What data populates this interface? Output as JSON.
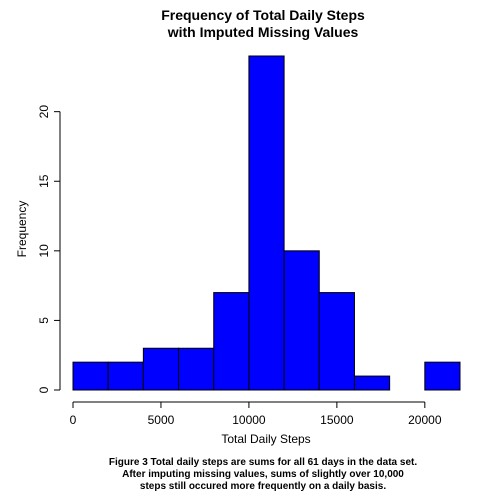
{
  "chart_data": {
    "type": "histogram",
    "title_lines": [
      "Frequency of Total Daily Steps",
      "with Imputed Missing Values"
    ],
    "xlabel": "Total Daily Steps",
    "ylabel": "Frequency",
    "bin_edges": [
      0,
      2000,
      4000,
      6000,
      8000,
      10000,
      12000,
      14000,
      16000,
      18000,
      20000,
      22000
    ],
    "counts": [
      2,
      2,
      3,
      3,
      7,
      24,
      10,
      7,
      1,
      0,
      2
    ],
    "xlim": [
      0,
      22000
    ],
    "ylim": [
      0,
      24
    ],
    "x_ticks": [
      0,
      5000,
      10000,
      15000,
      20000
    ],
    "y_ticks": [
      0,
      5,
      10,
      15,
      20
    ],
    "bar_color": "#0000ff",
    "grid": false,
    "caption_lines": [
      "Figure 3 Total daily steps are sums for all 61 days in the data set.",
      "After imputing missing values, sums of slightly over 10,000",
      "steps still occured more frequently on a daily basis."
    ]
  }
}
